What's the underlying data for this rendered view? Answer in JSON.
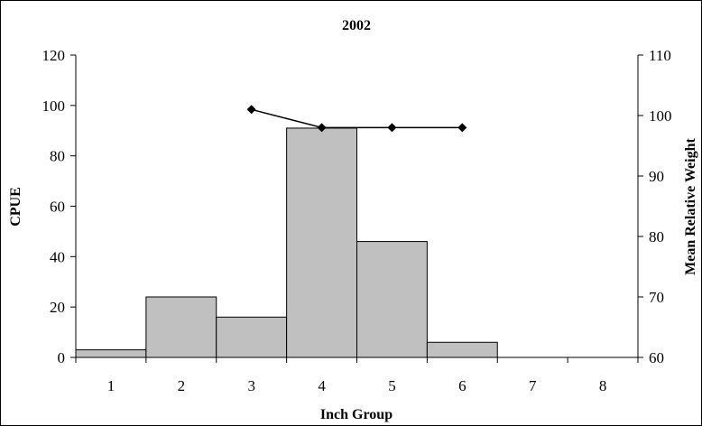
{
  "chart_data": {
    "type": "bar",
    "title": "2002",
    "xlabel": "Inch Group",
    "ylabel": "CPUE",
    "y2label": "Mean Relative Weight",
    "categories": [
      "1",
      "2",
      "3",
      "4",
      "5",
      "6",
      "7",
      "8"
    ],
    "ylim": [
      0,
      120
    ],
    "yticks": [
      0,
      20,
      40,
      60,
      80,
      100,
      120
    ],
    "y2lim": [
      60,
      110
    ],
    "y2ticks": [
      60,
      70,
      80,
      90,
      100,
      110
    ],
    "grid": false,
    "series": [
      {
        "type": "bar",
        "axis": "left",
        "values": [
          3,
          24,
          16,
          91,
          46,
          6,
          0,
          0
        ],
        "color": "#c0c0c0"
      },
      {
        "type": "line",
        "axis": "right",
        "marker": "diamond",
        "x": [
          "3",
          "4",
          "5",
          "6"
        ],
        "values": [
          101,
          98,
          98,
          98
        ],
        "color": "#000000"
      }
    ]
  }
}
